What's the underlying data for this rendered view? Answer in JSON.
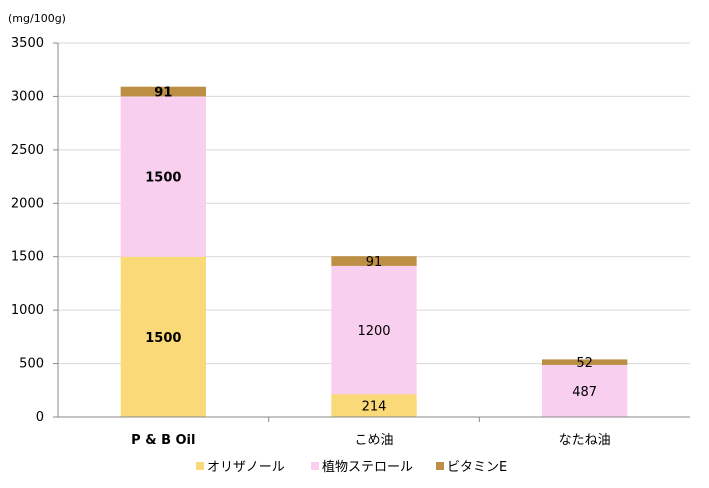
{
  "chart_data": {
    "type": "bar",
    "stacked": true,
    "unit_label": "(mg/100g)",
    "categories": [
      "P & B Oil",
      "こめ油",
      "なたね油"
    ],
    "category_bold": [
      true,
      false,
      false
    ],
    "series": [
      {
        "name": "オリザノール",
        "color": "#FAD978",
        "values": [
          1500,
          214,
          0
        ]
      },
      {
        "name": "植物ステロール",
        "color": "#F9CFF0",
        "values": [
          1500,
          1200,
          487
        ]
      },
      {
        "name": "ビタミンE",
        "color": "#BD8F44",
        "values": [
          91,
          91,
          52
        ]
      }
    ],
    "data_labels": [
      [
        "1500",
        "214",
        ""
      ],
      [
        "1500",
        "1200",
        "487"
      ],
      [
        "91",
        "91",
        "52"
      ]
    ],
    "ylim": [
      0,
      3500
    ],
    "yticks": [
      0,
      500,
      1000,
      1500,
      2000,
      2500,
      3000,
      3500
    ],
    "grid": true,
    "legend_position": "bottom"
  }
}
